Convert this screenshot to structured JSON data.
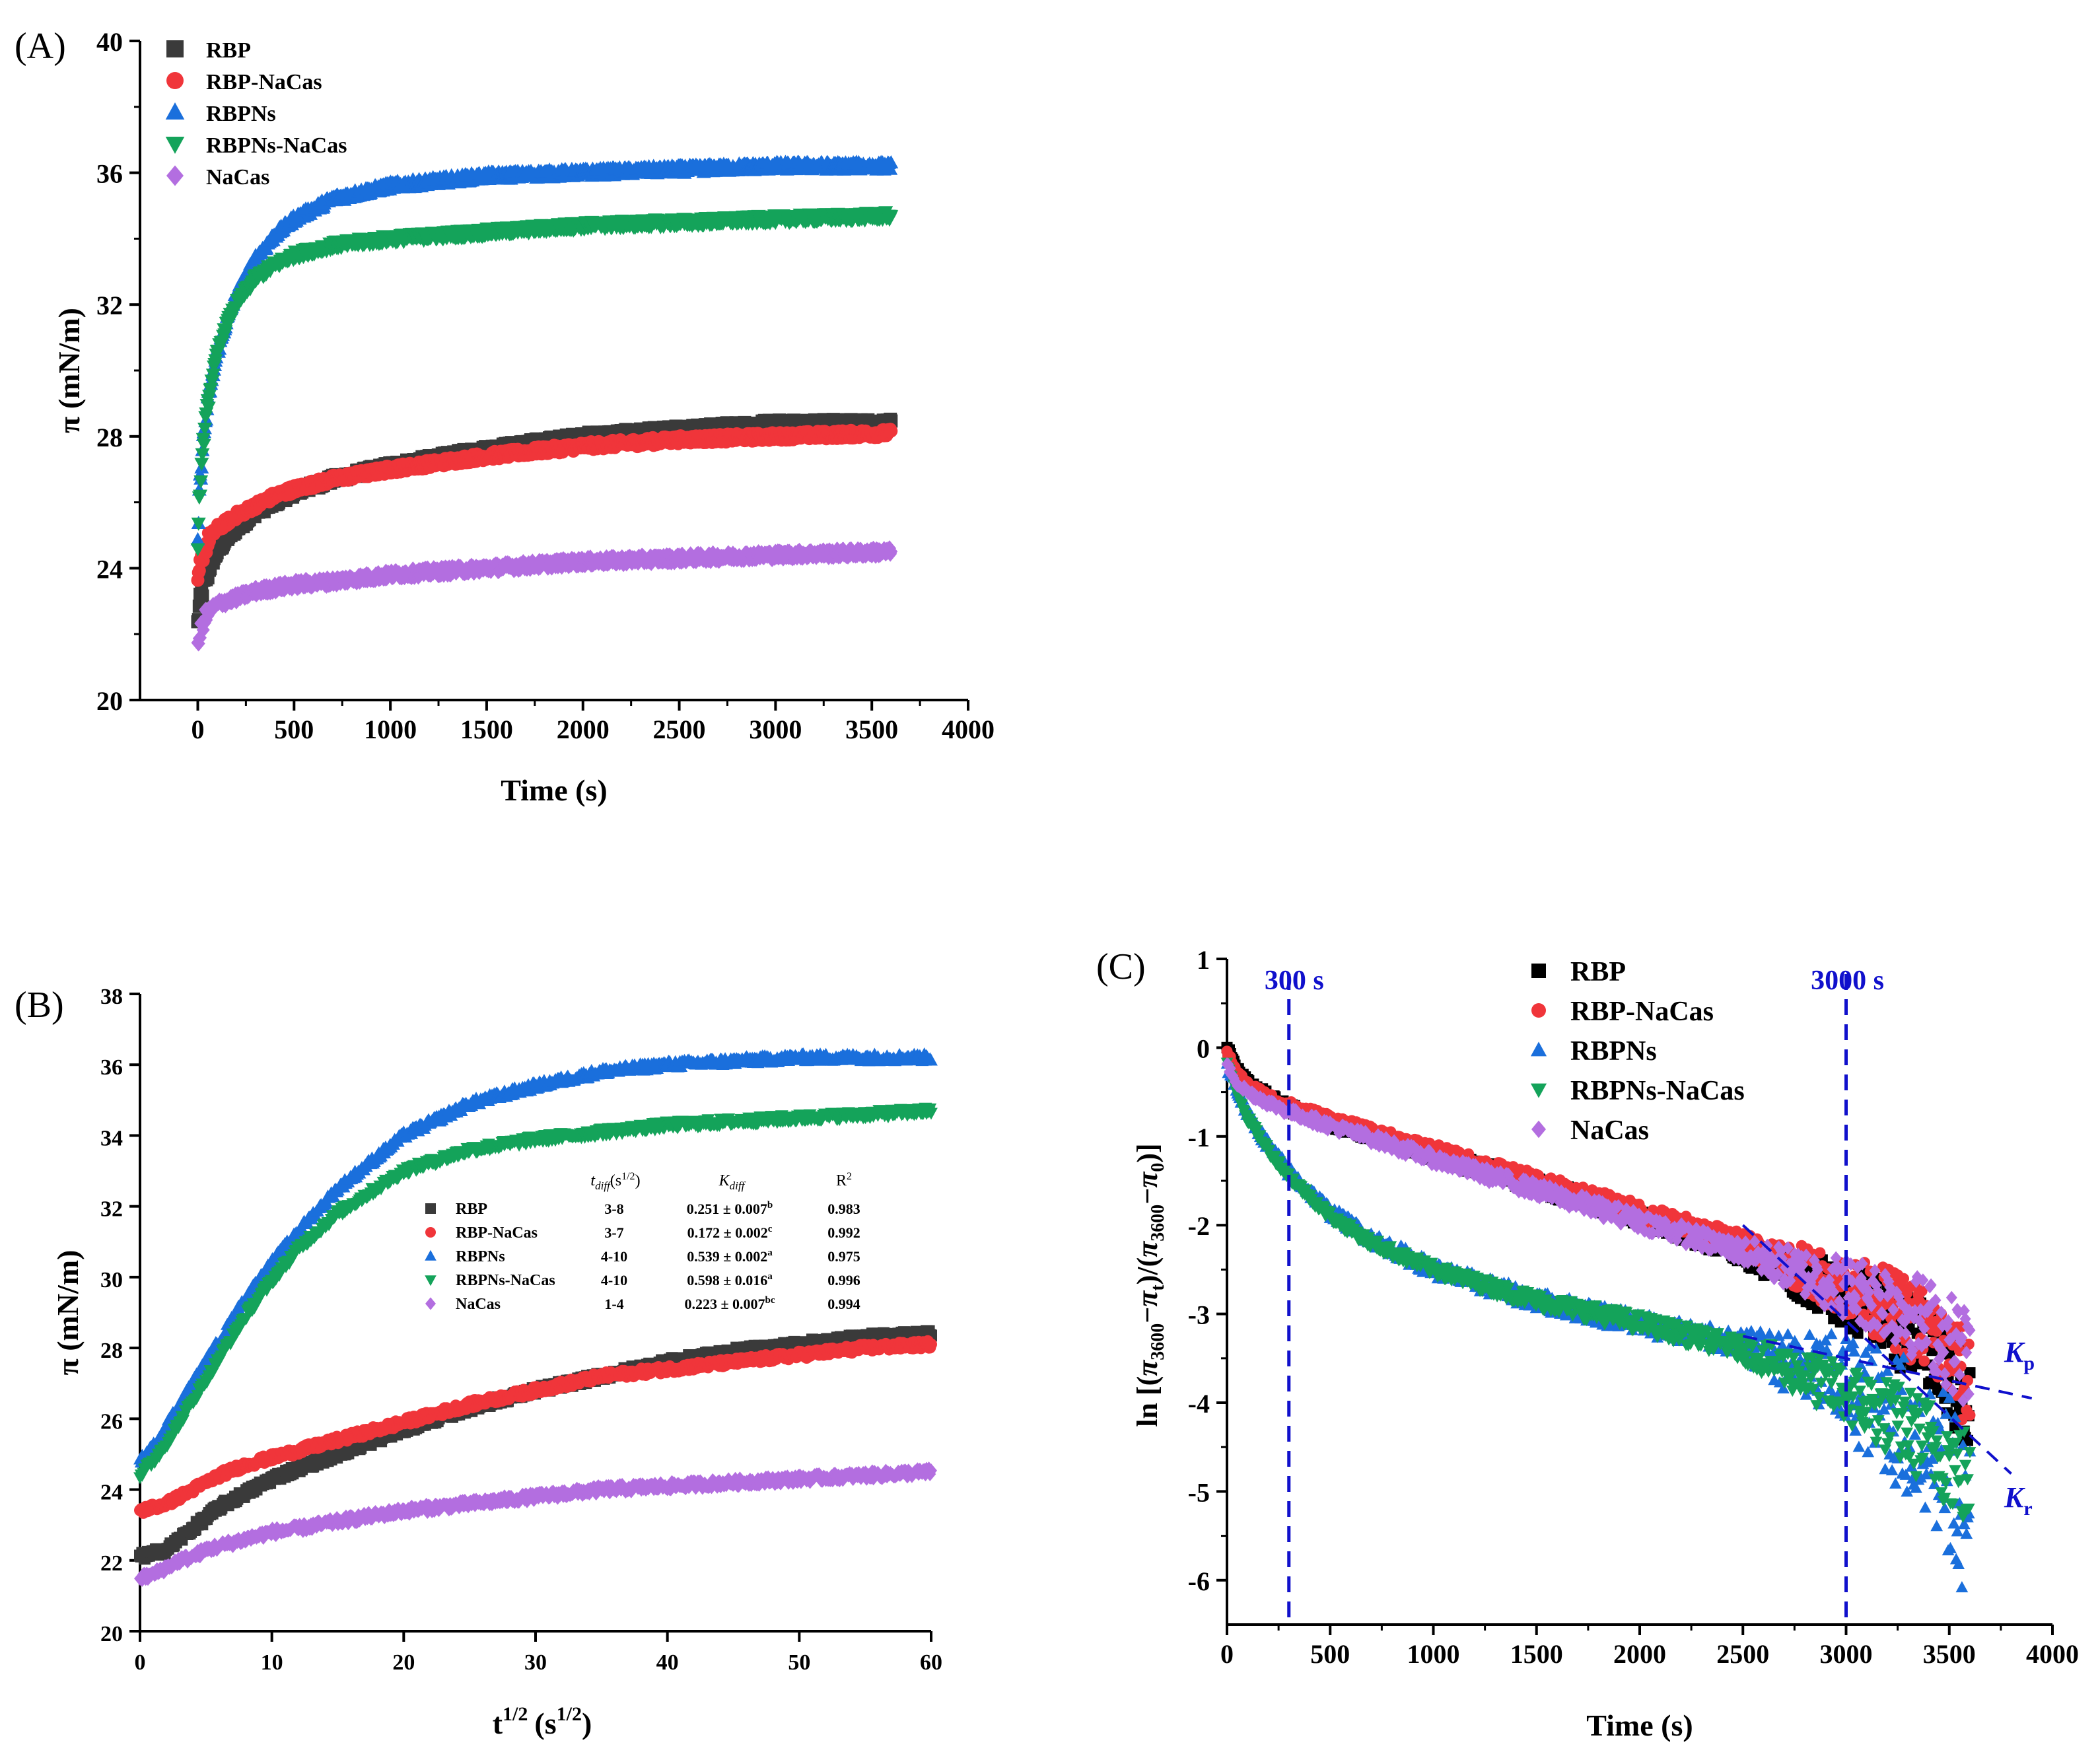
{
  "colors": {
    "RBP": "#3a3a3a",
    "RBP_C": "#000000",
    "RBP-NaCas": "#f0353a",
    "RBPNs": "#1a6fdc",
    "RBPNs-NaCas": "#14a35a",
    "NaCas": "#b36ee0",
    "guide": "#1010cc"
  },
  "chart_data": [
    {
      "panel": "(A)",
      "type": "scatter",
      "xlabel": "Time (s)",
      "ylabel": "π (mN/m)",
      "xlim": [
        -300,
        4000
      ],
      "ylim": [
        20,
        40
      ],
      "xticks": [
        0,
        500,
        1000,
        1500,
        2000,
        2500,
        3000,
        3500,
        4000
      ],
      "yticks": [
        20,
        24,
        28,
        32,
        36,
        40
      ],
      "legend_position": "top-left",
      "series": [
        {
          "name": "RBP",
          "marker": "square",
          "x": [
            0,
            10,
            30,
            60,
            100,
            150,
            200,
            300,
            400,
            500,
            700,
            1000,
            1500,
            2000,
            2500,
            3000,
            3600
          ],
          "y": [
            22.3,
            22.9,
            23.5,
            24.0,
            24.5,
            24.9,
            25.2,
            25.7,
            26.0,
            26.3,
            26.7,
            27.1,
            27.6,
            28.0,
            28.2,
            28.4,
            28.4
          ]
        },
        {
          "name": "RBP-NaCas",
          "marker": "circle",
          "x": [
            0,
            10,
            30,
            60,
            100,
            150,
            200,
            300,
            400,
            500,
            700,
            1000,
            1500,
            2000,
            2500,
            3000,
            3600
          ],
          "y": [
            23.4,
            24.0,
            24.5,
            24.9,
            25.2,
            25.4,
            25.6,
            25.9,
            26.2,
            26.4,
            26.7,
            27.0,
            27.4,
            27.7,
            27.9,
            28.0,
            28.1
          ]
        },
        {
          "name": "RBPNs",
          "marker": "triangle-up",
          "x": [
            0,
            10,
            30,
            60,
            100,
            150,
            200,
            300,
            400,
            500,
            700,
            1000,
            1500,
            2000,
            2500,
            3000,
            3600
          ],
          "y": [
            24.8,
            26.5,
            28.0,
            29.3,
            30.5,
            31.5,
            32.3,
            33.4,
            34.1,
            34.6,
            35.2,
            35.6,
            35.9,
            36.0,
            36.1,
            36.2,
            36.2
          ]
        },
        {
          "name": "RBPNs-NaCas",
          "marker": "triangle-down",
          "x": [
            0,
            10,
            30,
            60,
            100,
            150,
            200,
            300,
            400,
            500,
            700,
            1000,
            1500,
            2000,
            2500,
            3000,
            3600
          ],
          "y": [
            24.4,
            26.3,
            27.9,
            29.3,
            30.5,
            31.4,
            32.0,
            32.8,
            33.2,
            33.5,
            33.8,
            34.0,
            34.2,
            34.4,
            34.5,
            34.6,
            34.7
          ]
        },
        {
          "name": "NaCas",
          "marker": "diamond",
          "x": [
            0,
            10,
            30,
            60,
            100,
            150,
            200,
            300,
            400,
            500,
            700,
            1000,
            1500,
            2000,
            2500,
            3000,
            3600
          ],
          "y": [
            21.5,
            22.0,
            22.4,
            22.7,
            22.9,
            23.0,
            23.1,
            23.3,
            23.4,
            23.5,
            23.6,
            23.8,
            24.0,
            24.2,
            24.3,
            24.4,
            24.5
          ]
        }
      ]
    },
    {
      "panel": "(B)",
      "type": "scatter",
      "xlabel": "t",
      "xlabel_sup": "1/2",
      "xlabel_unit": "(s",
      "xlabel_unit_sup": "1/2",
      "xlabel_unit_end": ")",
      "ylabel": "π (mN/m)",
      "xlim": [
        0,
        60
      ],
      "ylim": [
        20,
        38
      ],
      "xticks": [
        0,
        10,
        20,
        30,
        40,
        50,
        60
      ],
      "yticks": [
        20,
        22,
        24,
        26,
        28,
        30,
        32,
        34,
        36,
        38
      ],
      "legend_position": "center",
      "table_headers": {
        "t": "t",
        "t_sub": "diff",
        "t_unit": "(s",
        "t_unit_sup": "1/2",
        "t_unit_end": ")",
        "k": "K",
        "k_sub": "diff",
        "r": "R",
        "r_sup": "2"
      },
      "table_rows": [
        {
          "name": "RBP",
          "t_diff": "3-8",
          "k_diff": "0.251 ± 0.007",
          "k_sup": "b",
          "r2": "0.983"
        },
        {
          "name": "RBP-NaCas",
          "t_diff": "3-7",
          "k_diff": "0.172 ± 0.002",
          "k_sup": "c",
          "r2": "0.992"
        },
        {
          "name": "RBPNs",
          "t_diff": "4-10",
          "k_diff": "0.539 ± 0.002",
          "k_sup": "a",
          "r2": "0.975"
        },
        {
          "name": "RBPNs-NaCas",
          "t_diff": "4-10",
          "k_diff": "0.598 ± 0.016",
          "k_sup": "a",
          "r2": "0.996"
        },
        {
          "name": "NaCas",
          "t_diff": "1-4",
          "k_diff": "0.223 ± 0.007",
          "k_sup": "bc",
          "r2": "0.994"
        }
      ],
      "series": [
        {
          "name": "RBP",
          "marker": "square",
          "x": [
            0,
            1,
            2,
            3,
            4,
            5,
            6,
            8,
            10,
            12,
            15,
            20,
            25,
            30,
            35,
            40,
            45,
            50,
            55,
            60
          ],
          "y": [
            22.1,
            22.2,
            22.3,
            22.6,
            22.9,
            23.2,
            23.5,
            23.9,
            24.3,
            24.6,
            25.0,
            25.7,
            26.3,
            26.8,
            27.2,
            27.6,
            27.9,
            28.1,
            28.3,
            28.4
          ]
        },
        {
          "name": "RBP-NaCas",
          "marker": "circle",
          "x": [
            0,
            1,
            2,
            3,
            4,
            5,
            6,
            8,
            10,
            12,
            15,
            20,
            25,
            30,
            35,
            40,
            45,
            50,
            55,
            60
          ],
          "y": [
            23.4,
            23.5,
            23.6,
            23.8,
            24.0,
            24.2,
            24.4,
            24.7,
            24.9,
            25.1,
            25.4,
            25.9,
            26.4,
            26.8,
            27.2,
            27.4,
            27.6,
            27.8,
            28.0,
            28.1
          ]
        },
        {
          "name": "RBPNs",
          "marker": "triangle-up",
          "x": [
            0,
            1,
            2,
            3,
            4,
            5,
            6,
            8,
            10,
            12,
            15,
            20,
            25,
            30,
            35,
            40,
            45,
            50,
            55,
            60
          ],
          "y": [
            24.8,
            25.2,
            25.8,
            26.4,
            27.0,
            27.6,
            28.2,
            29.4,
            30.4,
            31.3,
            32.5,
            34.0,
            34.9,
            35.4,
            35.8,
            36.0,
            36.1,
            36.2,
            36.2,
            36.2
          ]
        },
        {
          "name": "RBPNs-NaCas",
          "marker": "triangle-down",
          "x": [
            0,
            1,
            2,
            3,
            4,
            5,
            6,
            8,
            10,
            12,
            15,
            20,
            25,
            30,
            35,
            40,
            45,
            50,
            55,
            60
          ],
          "y": [
            24.4,
            24.8,
            25.3,
            25.9,
            26.5,
            27.1,
            27.7,
            28.9,
            29.9,
            30.8,
            31.8,
            33.0,
            33.6,
            33.9,
            34.1,
            34.3,
            34.4,
            34.5,
            34.6,
            34.7
          ]
        },
        {
          "name": "NaCas",
          "marker": "diamond",
          "x": [
            0,
            1,
            2,
            3,
            4,
            5,
            6,
            8,
            10,
            12,
            15,
            20,
            25,
            30,
            35,
            40,
            45,
            50,
            55,
            60
          ],
          "y": [
            21.5,
            21.6,
            21.8,
            22.0,
            22.1,
            22.3,
            22.4,
            22.6,
            22.8,
            22.9,
            23.1,
            23.4,
            23.6,
            23.8,
            24.0,
            24.1,
            24.2,
            24.3,
            24.4,
            24.5
          ]
        }
      ]
    },
    {
      "panel": "(C)",
      "type": "scatter",
      "xlabel": "Time (s)",
      "ylabel": "ln [(π3600−πt)/(π3600−π0)]",
      "ylabel_parts": {
        "pre": "ln [(",
        "pi1": "π",
        "sub1": "3600",
        "minus1": "−",
        "pi2": "π",
        "sub2": "t",
        "mid": ")/(",
        "pi3": "π",
        "sub3": "3600",
        "minus2": "−",
        "pi4": "π",
        "sub4": "0",
        "post": ")]"
      },
      "xlim": [
        0,
        4000
      ],
      "ylim": [
        -6.5,
        1
      ],
      "xticks": [
        0,
        500,
        1000,
        1500,
        2000,
        2500,
        3000,
        3500,
        4000
      ],
      "yticks": [
        -6,
        -5,
        -4,
        -3,
        -2,
        -1,
        0,
        1
      ],
      "legend_position": "top-center",
      "vlines": [
        {
          "x": 300,
          "label": "300 s"
        },
        {
          "x": 3000,
          "label": "3000 s"
        }
      ],
      "fit_labels": {
        "kp": "K",
        "kp_sub": "p",
        "kr": "K",
        "kr_sub": "r"
      },
      "fit_lines": [
        {
          "name": "K_p",
          "x": [
            2500,
            3900
          ],
          "y": [
            -3.25,
            -3.95
          ]
        },
        {
          "name": "K_r",
          "x": [
            2500,
            3800
          ],
          "y": [
            -2.0,
            -4.8
          ]
        }
      ],
      "series": [
        {
          "name": "RBP",
          "marker": "square",
          "x": [
            0,
            50,
            100,
            200,
            300,
            500,
            700,
            1000,
            1500,
            2000,
            2500,
            3000,
            3200,
            3400,
            3500,
            3600
          ],
          "y": [
            0,
            -0.25,
            -0.4,
            -0.55,
            -0.68,
            -0.85,
            -1.0,
            -1.2,
            -1.55,
            -1.9,
            -2.3,
            -2.8,
            -3.05,
            -3.4,
            -3.7,
            -4.1
          ]
        },
        {
          "name": "RBP-NaCas",
          "marker": "circle",
          "x": [
            0,
            50,
            100,
            200,
            300,
            500,
            700,
            1000,
            1500,
            2000,
            2500,
            3000,
            3200,
            3400,
            3500,
            3600
          ],
          "y": [
            -0.05,
            -0.3,
            -0.42,
            -0.55,
            -0.65,
            -0.8,
            -0.95,
            -1.15,
            -1.5,
            -1.85,
            -2.2,
            -2.7,
            -2.9,
            -3.2,
            -3.5,
            -3.8
          ]
        },
        {
          "name": "RBPNs",
          "marker": "triangle-up",
          "x": [
            0,
            50,
            100,
            200,
            300,
            500,
            700,
            1000,
            1500,
            2000,
            2500,
            3000,
            3200,
            3400,
            3500,
            3600
          ],
          "y": [
            -0.2,
            -0.5,
            -0.75,
            -1.1,
            -1.4,
            -1.85,
            -2.15,
            -2.5,
            -2.85,
            -3.1,
            -3.35,
            -3.8,
            -4.1,
            -4.5,
            -4.9,
            -5.3
          ]
        },
        {
          "name": "RBPNs-NaCas",
          "marker": "triangle-down",
          "x": [
            0,
            50,
            100,
            200,
            300,
            500,
            700,
            1000,
            1500,
            2000,
            2500,
            3000,
            3200,
            3400,
            3500,
            3600
          ],
          "y": [
            -0.2,
            -0.5,
            -0.8,
            -1.15,
            -1.45,
            -1.9,
            -2.2,
            -2.5,
            -2.85,
            -3.1,
            -3.4,
            -3.9,
            -4.15,
            -4.45,
            -4.65,
            -4.9
          ]
        },
        {
          "name": "NaCas",
          "marker": "diamond",
          "x": [
            0,
            50,
            100,
            200,
            300,
            500,
            700,
            1000,
            1500,
            2000,
            2500,
            3000,
            3200,
            3400,
            3500,
            3600
          ],
          "y": [
            -0.2,
            -0.4,
            -0.5,
            -0.62,
            -0.72,
            -0.88,
            -1.02,
            -1.25,
            -1.6,
            -1.95,
            -2.3,
            -2.7,
            -2.85,
            -3.1,
            -3.3,
            -3.5
          ]
        }
      ]
    }
  ]
}
